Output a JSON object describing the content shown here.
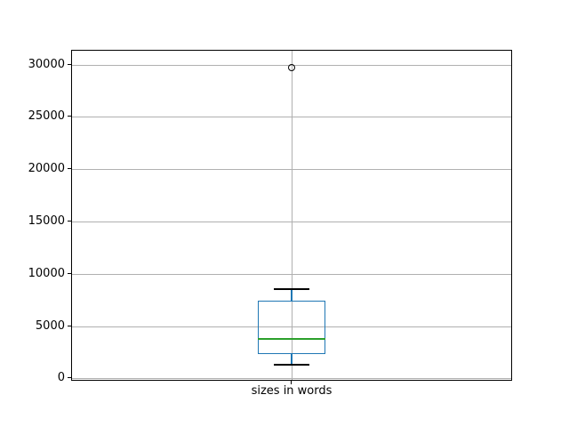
{
  "chart_data": {
    "type": "box",
    "title": "",
    "xlabel": "",
    "ylabel": "",
    "categories": [
      "sizes in words"
    ],
    "series": [
      {
        "name": "sizes in words",
        "whislo": 1360,
        "q1": 2370,
        "med": 3810,
        "q3": 7460,
        "whishi": 8560,
        "fliers": [
          29750
        ]
      }
    ],
    "yticks": [
      0,
      5000,
      10000,
      15000,
      20000,
      25000,
      30000
    ],
    "ylim": [
      -90,
      31360
    ],
    "grid": true,
    "legend": "none",
    "colors": {
      "box": "#1f77b4",
      "whisker": "#1f77b4",
      "cap": "#000000",
      "median": "#2ca02c",
      "flier": "#000000",
      "grid": "#b0b0b0",
      "frame": "#000000",
      "background": "#ffffff",
      "text": "#000000"
    }
  }
}
